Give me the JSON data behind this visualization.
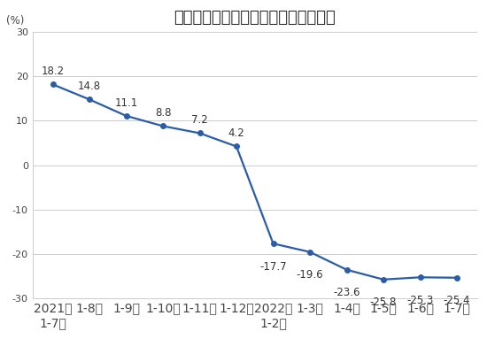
{
  "title": "全国房地产开发企业本年到位资金增速",
  "ylabel": "(%)",
  "x_labels": [
    "2021年\n1-7月",
    "1-8月",
    "1-9月",
    "1-10月",
    "1-11月",
    "1-12月",
    "2022年\n1-2月",
    "1-3月",
    "1-4月",
    "1-5月",
    "1-6月",
    "1-7月"
  ],
  "values": [
    18.2,
    14.8,
    11.1,
    8.8,
    7.2,
    4.2,
    -17.7,
    -19.6,
    -23.6,
    -25.8,
    -25.3,
    -25.4
  ],
  "line_color": "#2b5ca8",
  "marker_color": "#2b5ca8",
  "ylim": [
    -30,
    30
  ],
  "yticks": [
    -30,
    -20,
    -10,
    0,
    10,
    20,
    30
  ],
  "background_color": "#ffffff",
  "grid_color": "#cccccc",
  "title_fontsize": 13,
  "label_fontsize": 8.5,
  "tick_fontsize": 8,
  "ylabel_fontsize": 8.5
}
